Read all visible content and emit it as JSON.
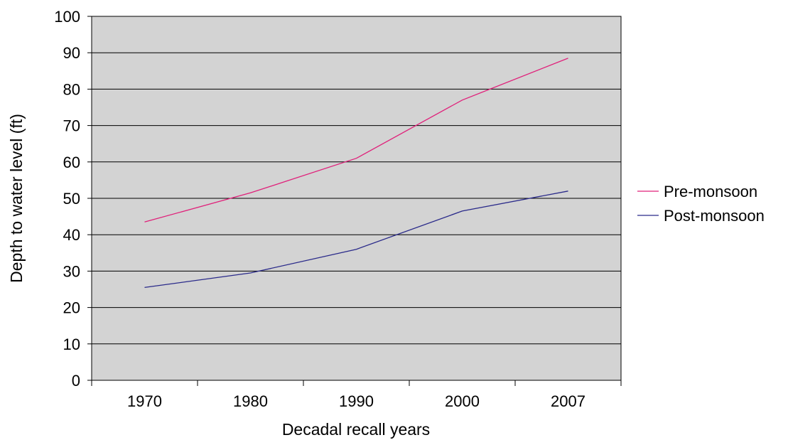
{
  "chart_data": {
    "type": "line",
    "title": "",
    "xlabel": "Decadal recall years",
    "ylabel": "Depth to water level (ft)",
    "categories": [
      "1970",
      "1980",
      "1990",
      "2000",
      "2007"
    ],
    "ylim": [
      0,
      100
    ],
    "yticks": [
      "0",
      "10",
      "20",
      "30",
      "40",
      "50",
      "60",
      "70",
      "80",
      "90",
      "100"
    ],
    "grid": true,
    "legend_position": "right",
    "plot_background": "#d3d3d3",
    "series": [
      {
        "name": "Pre-monsoon",
        "color": "#e0207a",
        "values": [
          43.5,
          51.5,
          61,
          77,
          88.5
        ]
      },
      {
        "name": "Post-monsoon",
        "color": "#2a2a8a",
        "values": [
          25.5,
          29.5,
          36,
          46.5,
          52
        ]
      }
    ]
  }
}
